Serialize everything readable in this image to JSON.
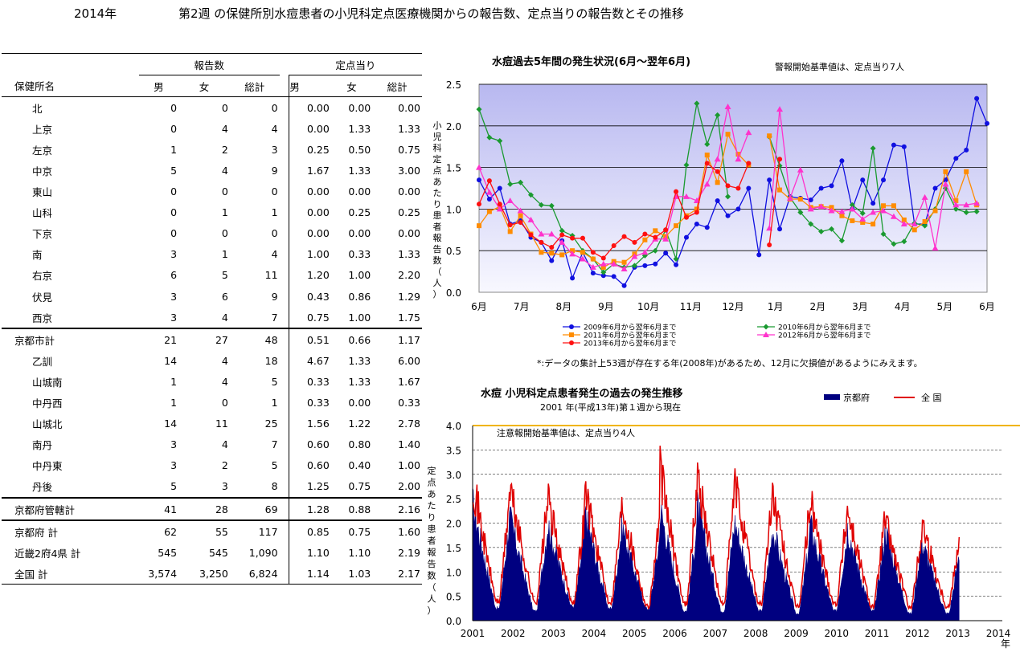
{
  "header": {
    "year": "2014年",
    "title": "第2週 の保健所別水痘患者の小児科定点医療機関からの報告数、定点当りの報告数とその推移"
  },
  "table": {
    "group_reports": "報告数",
    "group_rate": "定点当り",
    "col_name": "保健所名",
    "cols": [
      "男",
      "女",
      "総計",
      "男",
      "女",
      "総計"
    ],
    "rows": [
      {
        "name": "北",
        "v": [
          "0",
          "0",
          "0",
          "0.00",
          "0.00",
          "0.00"
        ],
        "kind": "item"
      },
      {
        "name": "上京",
        "v": [
          "0",
          "4",
          "4",
          "0.00",
          "1.33",
          "1.33"
        ],
        "kind": "item"
      },
      {
        "name": "左京",
        "v": [
          "1",
          "2",
          "3",
          "0.25",
          "0.50",
          "0.75"
        ],
        "kind": "item"
      },
      {
        "name": "中京",
        "v": [
          "5",
          "4",
          "9",
          "1.67",
          "1.33",
          "3.00"
        ],
        "kind": "item"
      },
      {
        "name": "東山",
        "v": [
          "0",
          "0",
          "0",
          "0.00",
          "0.00",
          "0.00"
        ],
        "kind": "item"
      },
      {
        "name": "山科",
        "v": [
          "0",
          "1",
          "1",
          "0.00",
          "0.25",
          "0.25"
        ],
        "kind": "item"
      },
      {
        "name": "下京",
        "v": [
          "0",
          "0",
          "0",
          "0.00",
          "0.00",
          "0.00"
        ],
        "kind": "item"
      },
      {
        "name": "南",
        "v": [
          "3",
          "1",
          "4",
          "1.00",
          "0.33",
          "1.33"
        ],
        "kind": "item"
      },
      {
        "name": "右京",
        "v": [
          "6",
          "5",
          "11",
          "1.20",
          "1.00",
          "2.20"
        ],
        "kind": "item"
      },
      {
        "name": "伏見",
        "v": [
          "3",
          "6",
          "9",
          "0.43",
          "0.86",
          "1.29"
        ],
        "kind": "item"
      },
      {
        "name": "西京",
        "v": [
          "3",
          "4",
          "7",
          "0.75",
          "1.00",
          "1.75"
        ],
        "kind": "item"
      },
      {
        "name": "京都市計",
        "v": [
          "21",
          "27",
          "48",
          "0.51",
          "0.66",
          "1.17"
        ],
        "kind": "sum"
      },
      {
        "name": "乙訓",
        "v": [
          "14",
          "4",
          "18",
          "4.67",
          "1.33",
          "6.00"
        ],
        "kind": "item"
      },
      {
        "name": "山城南",
        "v": [
          "1",
          "4",
          "5",
          "0.33",
          "1.33",
          "1.67"
        ],
        "kind": "item"
      },
      {
        "name": "中丹西",
        "v": [
          "1",
          "0",
          "1",
          "0.33",
          "0.00",
          "0.33"
        ],
        "kind": "item"
      },
      {
        "name": "山城北",
        "v": [
          "14",
          "11",
          "25",
          "1.56",
          "1.22",
          "2.78"
        ],
        "kind": "item"
      },
      {
        "name": "南丹",
        "v": [
          "3",
          "4",
          "7",
          "0.60",
          "0.80",
          "1.40"
        ],
        "kind": "item"
      },
      {
        "name": "中丹東",
        "v": [
          "3",
          "2",
          "5",
          "0.60",
          "0.40",
          "1.00"
        ],
        "kind": "item"
      },
      {
        "name": "丹後",
        "v": [
          "5",
          "3",
          "8",
          "1.25",
          "0.75",
          "2.00"
        ],
        "kind": "item"
      },
      {
        "name": "京都府管轄計",
        "v": [
          "41",
          "28",
          "69",
          "1.28",
          "0.88",
          "2.16"
        ],
        "kind": "sum"
      },
      {
        "name": "京都府 計",
        "v": [
          "62",
          "55",
          "117",
          "0.85",
          "0.75",
          "1.60"
        ],
        "kind": "sum2"
      },
      {
        "name": "近畿2府4県 計",
        "v": [
          "545",
          "545",
          "1,090",
          "1.10",
          "1.10",
          "2.19"
        ],
        "kind": "tot"
      },
      {
        "name": "全国 計",
        "v": [
          "3,574",
          "3,250",
          "6,824",
          "1.14",
          "1.03",
          "2.17"
        ],
        "kind": "last"
      }
    ]
  },
  "chart1_note": "警報開始基準値は、定点当り7人",
  "chart1_footnote": "*:データの集計上53週が存在する年(2008年)があるため、12月に欠損値があるようにみえます。",
  "chart2_subtitle": "2001 年(平成13年)第１週から現在",
  "chart2_note": "注意報開始基準値は、定点当り4人",
  "chart_data": [
    {
      "type": "line",
      "title": "水痘過去5年間の発生状況(6月～翌年6月)",
      "ylabel": "小児科定点あたり患者報告数（人）",
      "ylim": [
        0,
        2.5
      ],
      "yticks": [
        "0.0",
        "0.5",
        "1.0",
        "1.5",
        "2.0",
        "2.5"
      ],
      "xticks": [
        "6月",
        "7月",
        "8月",
        "9月",
        "10月",
        "11月",
        "12月",
        "1月",
        "2月",
        "3月",
        "4月",
        "5月",
        "6月"
      ],
      "grid": true,
      "legend": "bottom",
      "series": [
        {
          "name": "2009年6月から翌年6月まで",
          "color": "#1010e0",
          "marker": "circle",
          "values": [
            1.35,
            1.12,
            1.25,
            0.82,
            0.86,
            0.66,
            0.6,
            0.38,
            0.62,
            0.17,
            0.48,
            0.23,
            0.2,
            0.19,
            0.08,
            0.3,
            0.32,
            0.34,
            0.47,
            0.33,
            0.66,
            0.82,
            0.78,
            1.1,
            0.92,
            1.0,
            1.25,
            0.45,
            1.35,
            0.76,
            1.15,
            1.13,
            1.11,
            1.25,
            1.28,
            1.58,
            1.0,
            1.35,
            1.07,
            1.35,
            1.77,
            1.75,
            0.82,
            0.82,
            1.25,
            1.35,
            1.61,
            1.71,
            2.33,
            2.03
          ]
        },
        {
          "name": "2010年6月から翌年6月まで",
          "color": "#1a9a30",
          "marker": "diamond",
          "values": [
            2.2,
            1.86,
            1.82,
            1.3,
            1.32,
            1.17,
            1.05,
            1.04,
            0.74,
            0.68,
            0.5,
            0.4,
            0.24,
            0.34,
            0.3,
            0.32,
            0.44,
            0.5,
            0.75,
            0.4,
            1.53,
            2.27,
            1.78,
            2.13,
            1.15,
            null,
            null,
            null,
            1.87,
            1.52,
            1.14,
            0.96,
            0.82,
            0.73,
            0.76,
            0.62,
            1.05,
            0.95,
            1.73,
            0.7,
            0.58,
            0.61,
            0.83,
            0.8,
            1.0,
            1.25,
            1.0,
            0.96,
            0.97
          ]
        },
        {
          "name": "2011年6月から翌年6月まで",
          "color": "#ff8c00",
          "marker": "square",
          "values": [
            0.8,
            0.97,
            1.03,
            0.73,
            0.92,
            0.7,
            0.48,
            0.47,
            0.45,
            0.5,
            0.48,
            0.4,
            0.3,
            0.37,
            0.36,
            0.46,
            0.63,
            0.74,
            0.67,
            0.8,
            0.92,
            1.0,
            1.65,
            1.32,
            1.9,
            1.66,
            1.53,
            null,
            1.88,
            1.23,
            1.12,
            1.12,
            1.02,
            1.03,
            1.02,
            0.92,
            0.86,
            0.84,
            0.82,
            1.04,
            1.04,
            0.87,
            0.75,
            0.85,
            0.98,
            1.45,
            1.1,
            1.45,
            1.05
          ]
        },
        {
          "name": "2012年6月から翌年6月まで",
          "color": "#ff33cc",
          "marker": "triangle",
          "values": [
            1.5,
            1.2,
            1.0,
            1.1,
            0.98,
            0.87,
            0.7,
            0.7,
            0.6,
            0.46,
            0.4,
            0.3,
            0.34,
            0.34,
            0.28,
            0.43,
            0.48,
            0.64,
            0.64,
            1.15,
            1.15,
            1.1,
            1.3,
            1.6,
            2.23,
            1.6,
            1.92,
            null,
            0.77,
            2.2,
            1.13,
            1.47,
            1.0,
            1.03,
            0.98,
            0.97,
            1.0,
            0.88,
            0.96,
            0.98,
            0.91,
            0.82,
            0.82,
            1.14,
            0.53,
            1.3,
            1.05,
            1.05,
            1.07
          ]
        },
        {
          "name": "2013年6月から翌年6月まで",
          "color": "#ff1010",
          "marker": "circle",
          "values": [
            1.06,
            1.34,
            1.06,
            0.81,
            0.84,
            0.69,
            0.6,
            0.54,
            0.69,
            0.65,
            0.65,
            0.48,
            0.41,
            0.56,
            0.67,
            0.6,
            0.7,
            0.66,
            0.75,
            1.21,
            0.9,
            0.96,
            1.55,
            1.45,
            1.28,
            1.25,
            1.55,
            null,
            0.57,
            1.6
          ]
        }
      ]
    },
    {
      "type": "area",
      "title": "水痘 小児科定点患者発生の過去の発生推移",
      "ylabel": "定点あたり患者報告数（人）",
      "ylim": [
        0,
        4.0
      ],
      "yticks": [
        "0.0",
        "0.5",
        "1.0",
        "1.5",
        "2.0",
        "2.5",
        "3.0",
        "3.5",
        "4.0"
      ],
      "xticks": [
        "2001",
        "2002",
        "2003",
        "2004",
        "2005",
        "2006",
        "2007",
        "2008",
        "2009",
        "2010",
        "2011",
        "2012",
        "2013",
        "2014"
      ],
      "x_unit": "年",
      "threshold": 4.0,
      "threshold_color": "#f0b400",
      "legend": "top-right",
      "series": [
        {
          "name": "京都府",
          "color": "#000080",
          "kind": "area",
          "yearly_peak": [
            2.4,
            2.1,
            2.0,
            2.2,
            1.9,
            2.3,
            2.3,
            2.0,
            1.9,
            2.0,
            1.9,
            1.9,
            1.6
          ],
          "yearly_trough": [
            0.25,
            0.2,
            0.3,
            0.25,
            0.25,
            0.2,
            0.2,
            0.2,
            0.15,
            0.2,
            0.2,
            0.15,
            0.15
          ]
        },
        {
          "name": "全 国",
          "color": "#e00000",
          "kind": "line",
          "yearly_peak": [
            2.9,
            2.7,
            2.5,
            2.7,
            2.4,
            3.1,
            3.0,
            2.8,
            2.6,
            2.5,
            2.3,
            2.1,
            2.0
          ],
          "yearly_trough": [
            0.4,
            0.4,
            0.4,
            0.4,
            0.3,
            0.35,
            0.35,
            0.35,
            0.3,
            0.35,
            0.3,
            0.3,
            0.3
          ]
        }
      ]
    }
  ]
}
